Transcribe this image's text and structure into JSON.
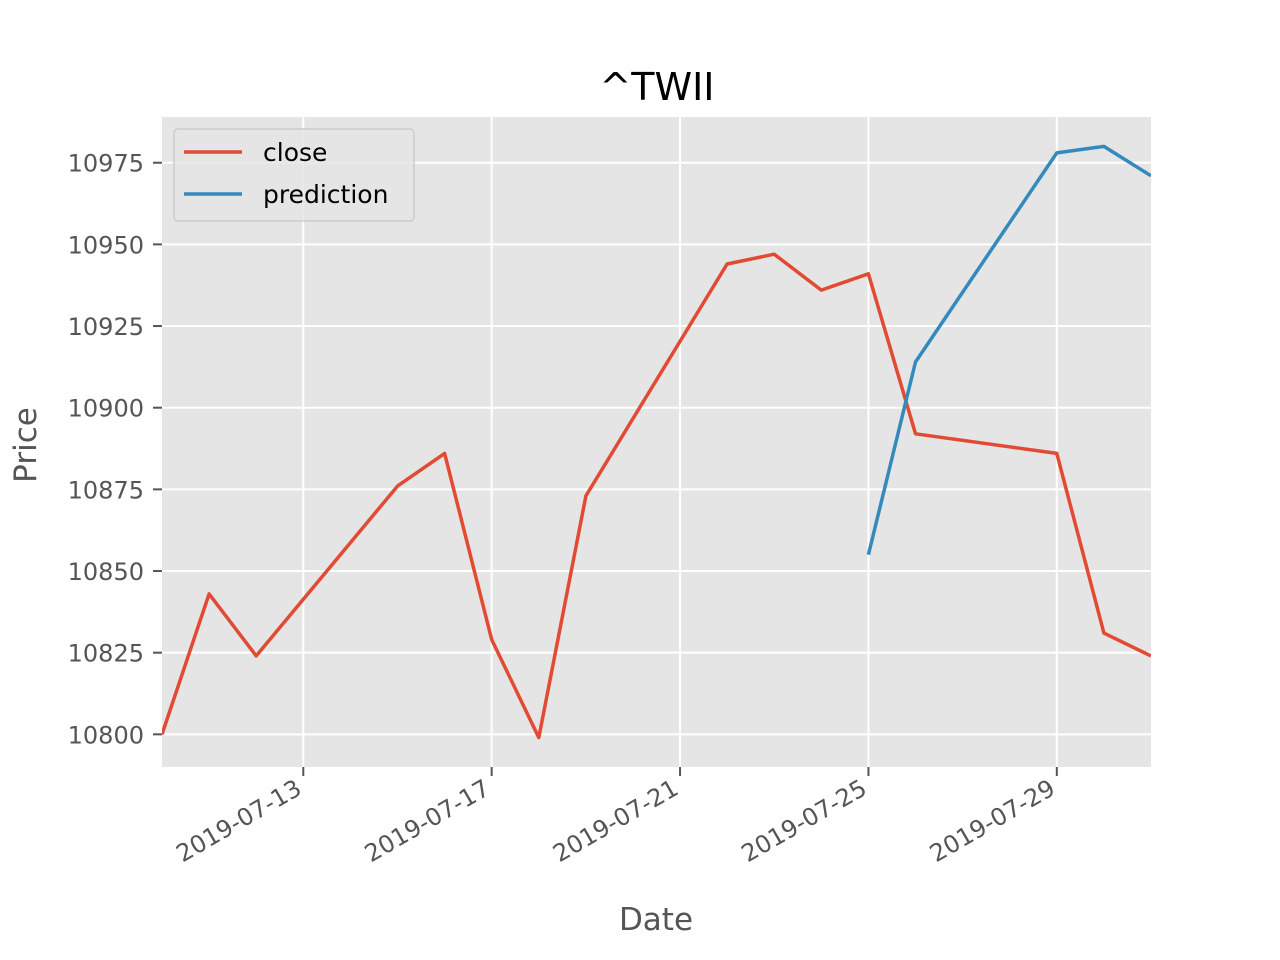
{
  "chart_data": {
    "type": "line",
    "title": "^TWII",
    "xlabel": "Date",
    "ylabel": "Price",
    "xlim": [
      "2019-07-10",
      "2019-07-31"
    ],
    "ylim": [
      10790,
      10989
    ],
    "x_ticks": [
      "2019-07-13",
      "2019-07-17",
      "2019-07-21",
      "2019-07-25",
      "2019-07-29"
    ],
    "y_ticks": [
      10800,
      10825,
      10850,
      10875,
      10900,
      10925,
      10950,
      10975
    ],
    "grid": true,
    "legend_position": "top-left",
    "series": [
      {
        "name": "close",
        "color": "#e24a33",
        "points": [
          {
            "x": "2019-07-10",
            "y": 10800
          },
          {
            "x": "2019-07-11",
            "y": 10843
          },
          {
            "x": "2019-07-12",
            "y": 10824
          },
          {
            "x": "2019-07-15",
            "y": 10876
          },
          {
            "x": "2019-07-16",
            "y": 10886
          },
          {
            "x": "2019-07-17",
            "y": 10829
          },
          {
            "x": "2019-07-18",
            "y": 10799
          },
          {
            "x": "2019-07-19",
            "y": 10873
          },
          {
            "x": "2019-07-22",
            "y": 10944
          },
          {
            "x": "2019-07-23",
            "y": 10947
          },
          {
            "x": "2019-07-24",
            "y": 10936
          },
          {
            "x": "2019-07-25",
            "y": 10941
          },
          {
            "x": "2019-07-26",
            "y": 10892
          },
          {
            "x": "2019-07-29",
            "y": 10886
          },
          {
            "x": "2019-07-30",
            "y": 10831
          },
          {
            "x": "2019-07-31",
            "y": 10824
          }
        ]
      },
      {
        "name": "prediction",
        "color": "#348abd",
        "points": [
          {
            "x": "2019-07-25",
            "y": 10855
          },
          {
            "x": "2019-07-26",
            "y": 10914
          },
          {
            "x": "2019-07-29",
            "y": 10978
          },
          {
            "x": "2019-07-30",
            "y": 10980
          },
          {
            "x": "2019-07-31",
            "y": 10971
          }
        ]
      }
    ]
  }
}
